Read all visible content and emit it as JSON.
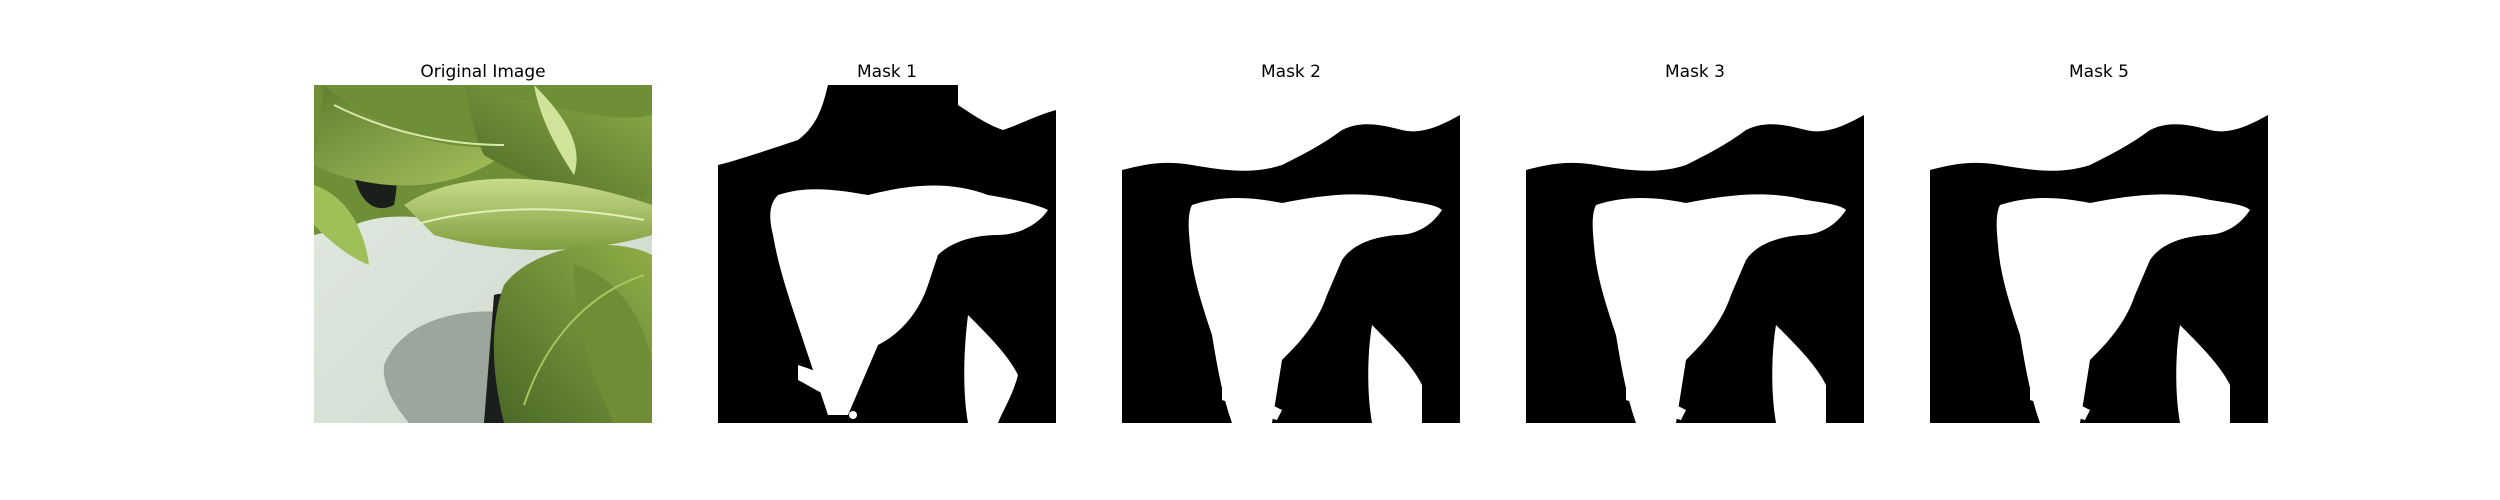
{
  "figure": {
    "panels": [
      {
        "title": "Original Image",
        "kind": "photo"
      },
      {
        "title": "Mask 1",
        "kind": "mask"
      },
      {
        "title": "Mask 2",
        "kind": "mask"
      },
      {
        "title": "Mask 3",
        "kind": "mask"
      },
      {
        "title": "Mask 5",
        "kind": "mask"
      }
    ]
  },
  "colors": {
    "mask_background": "#000000",
    "mask_foreground": "#ffffff",
    "leaf_dark": "#4f6e2a",
    "leaf_mid": "#7d9b3b",
    "leaf_light": "#b9cf7a",
    "pot": "#d9e3d8",
    "pot_shadow": "#9da69c",
    "dark_gap": "#1b1f1c"
  }
}
